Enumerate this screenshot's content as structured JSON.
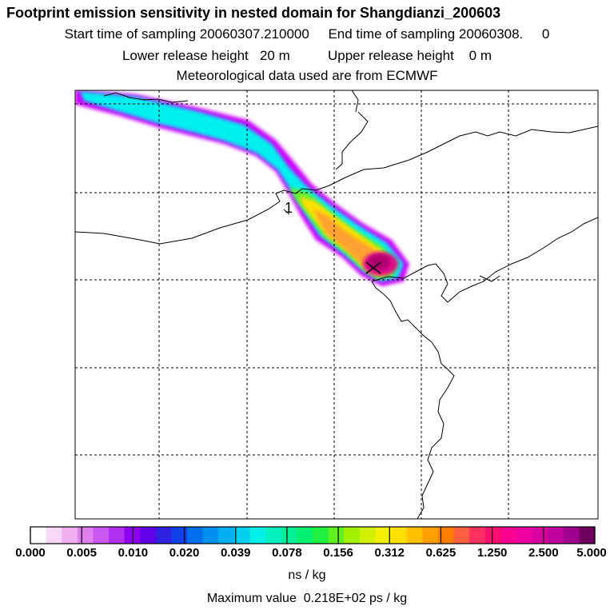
{
  "header": {
    "title": "Footprint emission sensitivity in nested domain for Shangdianzi_200603",
    "line2": "Start time of sampling 20060307.210000     End time of sampling 20060308.     0",
    "line3": "Lower release height   20 m          Upper release height    0 m",
    "line4": "Meteorological data used are from ECMWF"
  },
  "map": {
    "release_marker": "1",
    "receptor_icon": "x-marker-icon",
    "colors": {
      "plume_outer": "#cc00ff",
      "plume_cyan": "#00f0f0",
      "plume_green": "#66ee33",
      "plume_yellow": "#ffe000",
      "plume_orange": "#ffa030",
      "plume_core": "#b00070",
      "coast": "#000000",
      "grid": "#000000"
    }
  },
  "colorbar": {
    "labels": [
      "0.000",
      "0.005",
      "0.010",
      "0.020",
      "0.039",
      "0.078",
      "0.156",
      "0.312",
      "0.625",
      "1.250",
      "2.500",
      "5.000"
    ],
    "colors": [
      "#ffffff",
      "#f8d8f8",
      "#f0b0f0",
      "#e080f0",
      "#c858f0",
      "#b030f0",
      "#9000f0",
      "#6000e8",
      "#3020e0",
      "#1040e8",
      "#0070f0",
      "#0090f0",
      "#00b0f0",
      "#00d0f0",
      "#00f0e8",
      "#00f0c0",
      "#00f098",
      "#00f070",
      "#20f040",
      "#60f020",
      "#a0f000",
      "#d0f000",
      "#f0f000",
      "#ffe000",
      "#ffc000",
      "#ffa000",
      "#ff8000",
      "#ff6040",
      "#ff3060",
      "#ff1070",
      "#ff0090",
      "#f000a0",
      "#d800a0",
      "#c0009c",
      "#a00090",
      "#700060"
    ],
    "units": "ns / kg",
    "max_value_text": "Maximum value  0.218E+02 ps / kg"
  }
}
